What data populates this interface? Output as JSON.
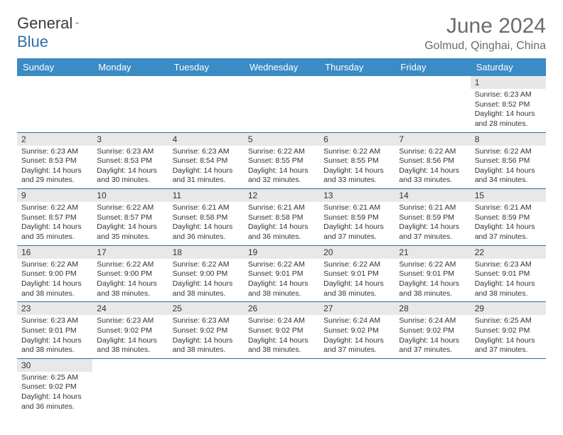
{
  "brand": {
    "part1": "General",
    "part2": "Blue"
  },
  "title": "June 2024",
  "subtitle": "Golmud, Qinghai, China",
  "colors": {
    "header_bg": "#3b8bc4",
    "header_fg": "#ffffff",
    "rule": "#2f6fa7",
    "daynum_bg": "#e8e8e8",
    "brand_blue": "#2f6fa7",
    "text": "#333333",
    "title_color": "#6b6b6b"
  },
  "weekdays": [
    "Sunday",
    "Monday",
    "Tuesday",
    "Wednesday",
    "Thursday",
    "Friday",
    "Saturday"
  ],
  "weeks": [
    [
      null,
      null,
      null,
      null,
      null,
      null,
      {
        "d": "1",
        "sr": "6:23 AM",
        "ss": "8:52 PM",
        "dl": "14 hours and 28 minutes."
      }
    ],
    [
      {
        "d": "2",
        "sr": "6:23 AM",
        "ss": "8:53 PM",
        "dl": "14 hours and 29 minutes."
      },
      {
        "d": "3",
        "sr": "6:23 AM",
        "ss": "8:53 PM",
        "dl": "14 hours and 30 minutes."
      },
      {
        "d": "4",
        "sr": "6:23 AM",
        "ss": "8:54 PM",
        "dl": "14 hours and 31 minutes."
      },
      {
        "d": "5",
        "sr": "6:22 AM",
        "ss": "8:55 PM",
        "dl": "14 hours and 32 minutes."
      },
      {
        "d": "6",
        "sr": "6:22 AM",
        "ss": "8:55 PM",
        "dl": "14 hours and 33 minutes."
      },
      {
        "d": "7",
        "sr": "6:22 AM",
        "ss": "8:56 PM",
        "dl": "14 hours and 33 minutes."
      },
      {
        "d": "8",
        "sr": "6:22 AM",
        "ss": "8:56 PM",
        "dl": "14 hours and 34 minutes."
      }
    ],
    [
      {
        "d": "9",
        "sr": "6:22 AM",
        "ss": "8:57 PM",
        "dl": "14 hours and 35 minutes."
      },
      {
        "d": "10",
        "sr": "6:22 AM",
        "ss": "8:57 PM",
        "dl": "14 hours and 35 minutes."
      },
      {
        "d": "11",
        "sr": "6:21 AM",
        "ss": "8:58 PM",
        "dl": "14 hours and 36 minutes."
      },
      {
        "d": "12",
        "sr": "6:21 AM",
        "ss": "8:58 PM",
        "dl": "14 hours and 36 minutes."
      },
      {
        "d": "13",
        "sr": "6:21 AM",
        "ss": "8:59 PM",
        "dl": "14 hours and 37 minutes."
      },
      {
        "d": "14",
        "sr": "6:21 AM",
        "ss": "8:59 PM",
        "dl": "14 hours and 37 minutes."
      },
      {
        "d": "15",
        "sr": "6:21 AM",
        "ss": "8:59 PM",
        "dl": "14 hours and 37 minutes."
      }
    ],
    [
      {
        "d": "16",
        "sr": "6:22 AM",
        "ss": "9:00 PM",
        "dl": "14 hours and 38 minutes."
      },
      {
        "d": "17",
        "sr": "6:22 AM",
        "ss": "9:00 PM",
        "dl": "14 hours and 38 minutes."
      },
      {
        "d": "18",
        "sr": "6:22 AM",
        "ss": "9:00 PM",
        "dl": "14 hours and 38 minutes."
      },
      {
        "d": "19",
        "sr": "6:22 AM",
        "ss": "9:01 PM",
        "dl": "14 hours and 38 minutes."
      },
      {
        "d": "20",
        "sr": "6:22 AM",
        "ss": "9:01 PM",
        "dl": "14 hours and 38 minutes."
      },
      {
        "d": "21",
        "sr": "6:22 AM",
        "ss": "9:01 PM",
        "dl": "14 hours and 38 minutes."
      },
      {
        "d": "22",
        "sr": "6:23 AM",
        "ss": "9:01 PM",
        "dl": "14 hours and 38 minutes."
      }
    ],
    [
      {
        "d": "23",
        "sr": "6:23 AM",
        "ss": "9:01 PM",
        "dl": "14 hours and 38 minutes."
      },
      {
        "d": "24",
        "sr": "6:23 AM",
        "ss": "9:02 PM",
        "dl": "14 hours and 38 minutes."
      },
      {
        "d": "25",
        "sr": "6:23 AM",
        "ss": "9:02 PM",
        "dl": "14 hours and 38 minutes."
      },
      {
        "d": "26",
        "sr": "6:24 AM",
        "ss": "9:02 PM",
        "dl": "14 hours and 38 minutes."
      },
      {
        "d": "27",
        "sr": "6:24 AM",
        "ss": "9:02 PM",
        "dl": "14 hours and 37 minutes."
      },
      {
        "d": "28",
        "sr": "6:24 AM",
        "ss": "9:02 PM",
        "dl": "14 hours and 37 minutes."
      },
      {
        "d": "29",
        "sr": "6:25 AM",
        "ss": "9:02 PM",
        "dl": "14 hours and 37 minutes."
      }
    ],
    [
      {
        "d": "30",
        "sr": "6:25 AM",
        "ss": "9:02 PM",
        "dl": "14 hours and 36 minutes."
      },
      null,
      null,
      null,
      null,
      null,
      null
    ]
  ],
  "labels": {
    "sunrise": "Sunrise:",
    "sunset": "Sunset:",
    "daylight": "Daylight:"
  }
}
